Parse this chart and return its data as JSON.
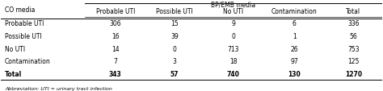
{
  "title_top": "BP/EMB media",
  "col_header_left": "CO media",
  "col_headers": [
    "Probable UTI",
    "Possible UTI",
    "No UTI",
    "Contamination",
    "Total"
  ],
  "row_headers": [
    "Probable UTI",
    "Possible UTI",
    "No UTI",
    "Contamination",
    "Total"
  ],
  "table_data": [
    [
      306,
      15,
      9,
      6,
      336
    ],
    [
      16,
      39,
      0,
      1,
      56
    ],
    [
      14,
      0,
      713,
      26,
      753
    ],
    [
      7,
      3,
      18,
      97,
      125
    ],
    [
      343,
      57,
      740,
      130,
      1270
    ]
  ],
  "footnote": "Abbreviation: UTI = urinary tract infection",
  "bg_color": "#ffffff",
  "text_color": "#000000",
  "header_line_color": "#000000",
  "bold_rows": [
    4
  ],
  "figsize": [
    4.74,
    1.14
  ],
  "dpi": 100
}
